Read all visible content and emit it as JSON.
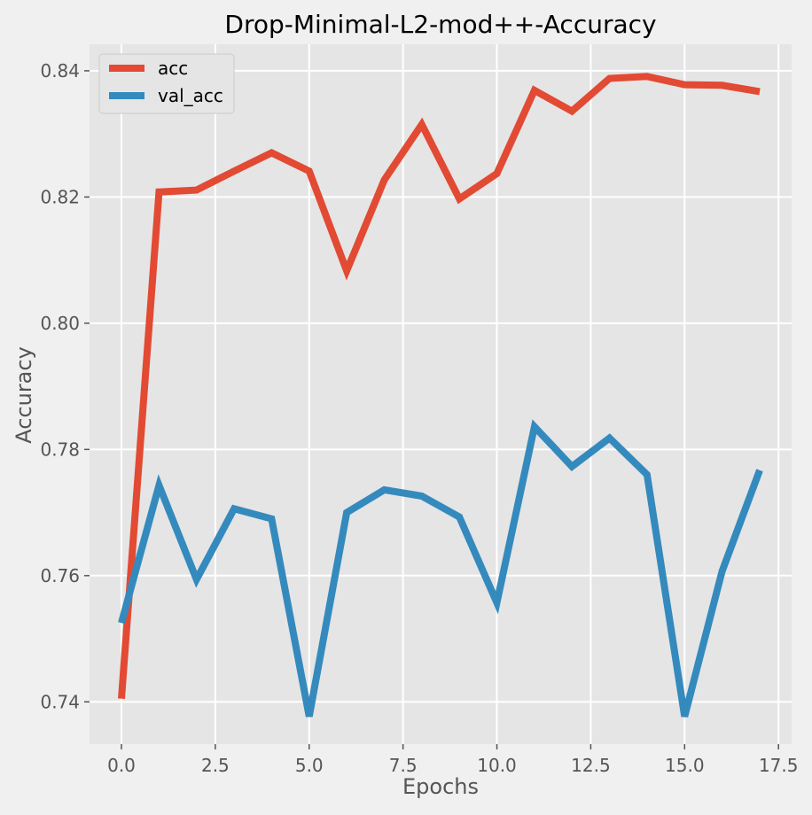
{
  "chart_data": {
    "type": "line",
    "title": "Drop-Minimal-L2-mod++-Accuracy",
    "xlabel": "Epochs",
    "ylabel": "Accuracy",
    "xlim": [
      -0.85,
      17.85
    ],
    "ylim": [
      0.7333,
      0.8442
    ],
    "x_ticks": [
      0.0,
      2.5,
      5.0,
      7.5,
      10.0,
      12.5,
      15.0,
      17.5
    ],
    "x_tick_labels": [
      "0.0",
      "2.5",
      "5.0",
      "7.5",
      "10.0",
      "12.5",
      "15.0",
      "17.5"
    ],
    "y_ticks": [
      0.74,
      0.76,
      0.78,
      0.8,
      0.82,
      0.84
    ],
    "y_tick_labels": [
      "0.74",
      "0.76",
      "0.78",
      "0.80",
      "0.82",
      "0.84"
    ],
    "grid": true,
    "legend_position": "upper-left",
    "x": [
      0,
      1,
      2,
      3,
      4,
      5,
      6,
      7,
      8,
      9,
      10,
      11,
      12,
      13,
      14,
      15,
      16,
      17
    ],
    "series": [
      {
        "name": "acc",
        "color": "#e24a33",
        "values": [
          0.7405,
          0.8208,
          0.8211,
          0.8241,
          0.827,
          0.8241,
          0.8083,
          0.8227,
          0.8315,
          0.8197,
          0.8237,
          0.8369,
          0.8336,
          0.8388,
          0.8391,
          0.8378,
          0.8377,
          0.8367
        ]
      },
      {
        "name": "val_acc",
        "color": "#348abd",
        "values": [
          0.7525,
          0.7743,
          0.7594,
          0.7706,
          0.769,
          0.7377,
          0.77,
          0.7736,
          0.7726,
          0.7693,
          0.7557,
          0.7836,
          0.7773,
          0.7818,
          0.776,
          0.7377,
          0.7607,
          0.7767
        ]
      }
    ]
  },
  "style": {
    "page_background": "#f0f0f0",
    "plot_background": "#e5e5e5",
    "grid_color": "#ffffff",
    "text_color": "#555555",
    "title_color": "#000000"
  }
}
